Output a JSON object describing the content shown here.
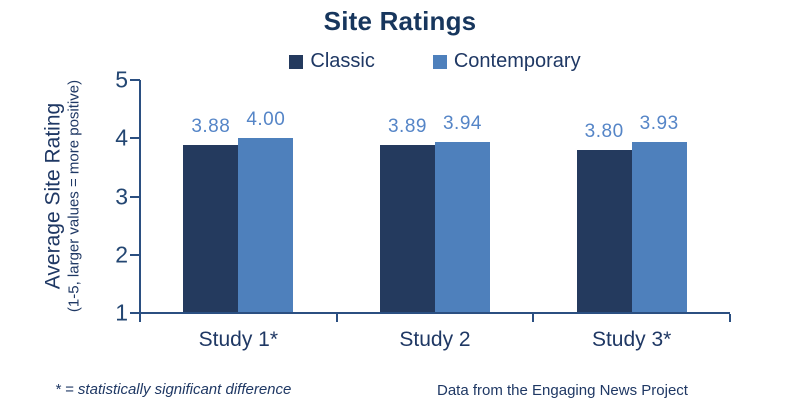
{
  "title": "Site Ratings",
  "chart_data": {
    "type": "bar",
    "title": "Site Ratings",
    "categories": [
      "Study 1*",
      "Study 2",
      "Study 3*"
    ],
    "series": [
      {
        "name": "Classic",
        "color": "#243A5E",
        "values": [
          3.88,
          3.89,
          3.8
        ],
        "labels": [
          "3.88",
          "3.89",
          "3.80"
        ]
      },
      {
        "name": "Contemporary",
        "color": "#4E80BC",
        "values": [
          4.0,
          3.94,
          3.93
        ],
        "labels": [
          "4.00",
          "3.94",
          "3.93"
        ]
      }
    ],
    "xlabel": "",
    "ylabel": "Average Site Rating",
    "ylabel_sub": "(1-5, larger values = more positive)",
    "ylim": [
      1,
      5
    ],
    "yticks": [
      1,
      2,
      3,
      4,
      5
    ],
    "legend_position": "top-center",
    "grid": false,
    "value_label_color": "#5585C7",
    "axis_color": "#2B4F81",
    "text_color": "#1F3864"
  },
  "footnotes": {
    "left": "* = statistically significant difference",
    "right": "Data from the Engaging News Project"
  }
}
